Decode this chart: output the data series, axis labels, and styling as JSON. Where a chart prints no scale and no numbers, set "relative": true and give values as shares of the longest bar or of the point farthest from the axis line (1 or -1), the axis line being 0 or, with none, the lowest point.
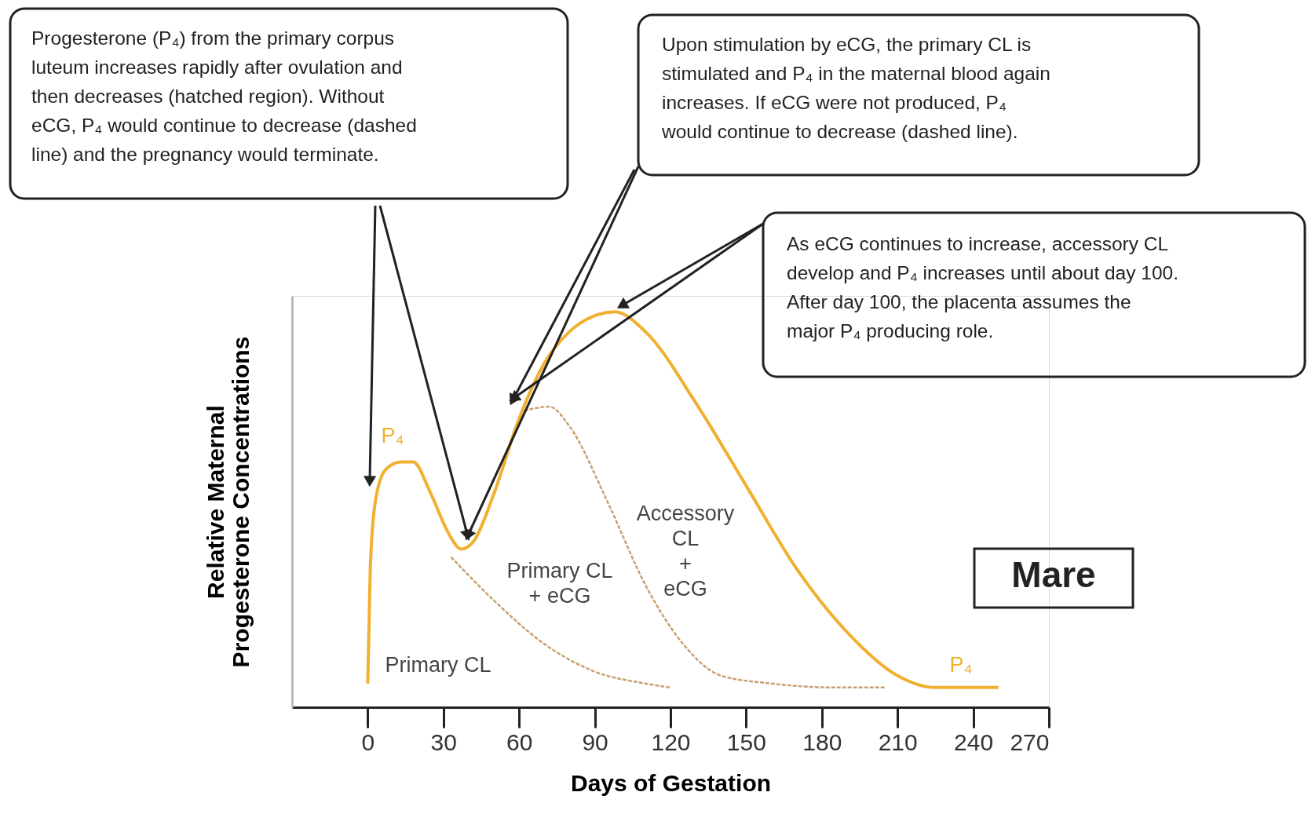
{
  "chart_data": {
    "type": "line",
    "relative": true,
    "xlabel": "Days of Gestation",
    "ylabel": "Relative Maternal\nProgesterone Concentrations",
    "xlim": [
      -30,
      270
    ],
    "xticks": [
      0,
      30,
      60,
      90,
      120,
      150,
      180,
      210,
      240,
      270
    ],
    "grid": false,
    "marker": "none",
    "series": [
      {
        "color": "#f0b030",
        "line_style": "solid",
        "x": [
          0,
          1,
          3,
          7,
          13,
          18,
          25,
          32,
          37,
          42,
          50,
          60,
          70,
          80,
          90,
          98,
          110,
          130,
          150,
          170,
          190,
          210,
          225,
          240,
          250
        ],
        "values": [
          0.06,
          0.35,
          0.52,
          0.6,
          0.62,
          0.62,
          0.54,
          0.44,
          0.4,
          0.42,
          0.54,
          0.73,
          0.87,
          0.95,
          0.99,
          1.0,
          0.95,
          0.77,
          0.56,
          0.35,
          0.19,
          0.08,
          0.05,
          0.05,
          0.05
        ]
      },
      {
        "color": "#c8a070",
        "line_style": "dashed",
        "x": [
          33,
          50,
          70,
          90,
          110,
          120
        ],
        "values": [
          0.38,
          0.27,
          0.16,
          0.09,
          0.06,
          0.05
        ]
      },
      {
        "color": "#c8a070",
        "line_style": "dashed",
        "x": [
          62,
          72,
          80,
          95,
          110,
          125,
          140,
          160,
          185,
          205
        ],
        "values": [
          0.75,
          0.76,
          0.71,
          0.52,
          0.31,
          0.16,
          0.08,
          0.06,
          0.05,
          0.05
        ]
      }
    ],
    "annotations": [
      "Progesterone (P₄) from the primary corpus\nluteum increases rapidly after ovulation and\nthen decreases (hatched region). Without\neCG, P₄ would continue to decrease (dashed\nline) and the pregnancy would terminate.",
      "Upon stimulation by eCG, the primary CL is\nstimulated and P₄ in the maternal blood again\nincreases. If eCG were not produced, P₄\nwould continue to decrease (dashed line).",
      "As eCG continues to increase, accessory CL\ndevelop and P₄ increases until about day 100.\nAfter day 100, the placenta assumes the\nmajor P₄ producing role.",
      "Mare",
      "P₄",
      "P₄",
      "Primary CL",
      "Primary CL\n+ eCG",
      "Accessory\nCL\n+\neCG"
    ]
  }
}
